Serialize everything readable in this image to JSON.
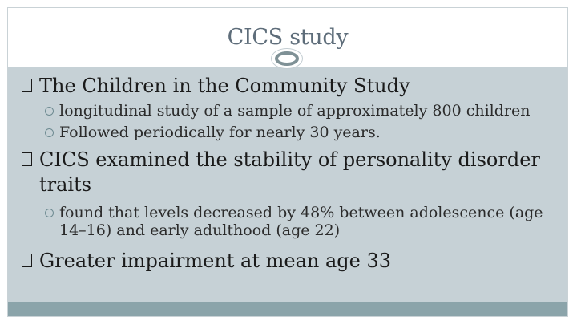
{
  "slide": {
    "title": "CICS study",
    "bullets": [
      {
        "text": "The Children in the Community Study",
        "sub": [
          "longitudinal study of a sample of approximately 800 children",
          "Followed periodically for nearly 30 years."
        ]
      },
      {
        "text": "CICS examined the stability of personality disorder traits",
        "sub": [
          "found that levels decreased by 48% between adolescence (age 14–16) and early adulthood (age 22)"
        ]
      },
      {
        "text": "Greater impairment at mean age 33",
        "sub": []
      }
    ]
  },
  "colors": {
    "title_text": "#5e6d7a",
    "content_background": "#c6d1d6",
    "footer_bar": "#8ba4aa",
    "bullet_ring": "#6e8b92"
  }
}
